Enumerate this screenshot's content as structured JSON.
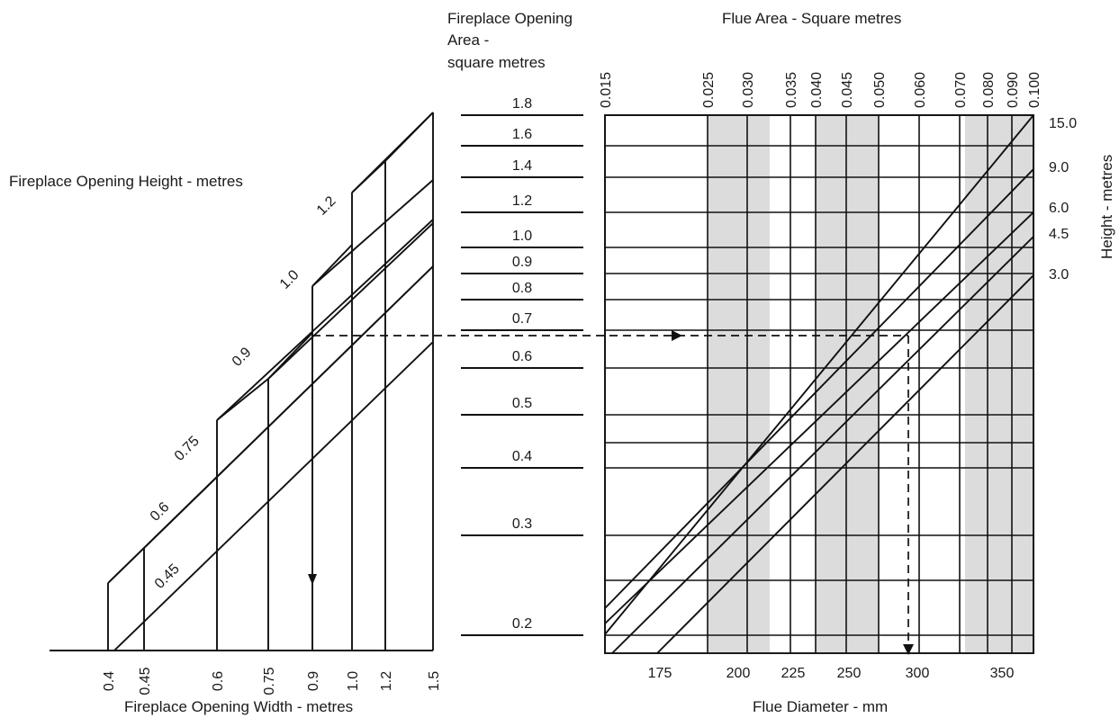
{
  "titles": {
    "height_label": "Fireplace Opening Height - metres",
    "width_label": "Fireplace Opening Width - metres",
    "area_label_1": "Fireplace Opening",
    "area_label_2": "Area -",
    "area_label_3": "square metres",
    "flue_area_label": "Flue Area - Square metres",
    "flue_diameter_label": "Flue Diameter - mm",
    "chimney_height_label": "Height - metres"
  },
  "opening_widths": [
    "0.4",
    "0.45",
    "0.6",
    "0.75",
    "0.9",
    "1.0",
    "1.2",
    "1.5"
  ],
  "opening_heights": [
    "0.45",
    "0.6",
    "0.75",
    "0.9",
    "1.0",
    "1.2"
  ],
  "opening_areas": [
    "1.8",
    "1.6",
    "1.4",
    "1.2",
    "1.0",
    "0.9",
    "0.8",
    "0.7",
    "0.6",
    "0.5",
    "0.4",
    "0.3",
    "0.2"
  ],
  "flue_areas": [
    "0.015",
    "0.025",
    "0.030",
    "0.035",
    "0.040",
    "0.045",
    "0.050",
    "0.060",
    "0.070",
    "0.080",
    "0.090",
    "0.100"
  ],
  "chimney_heights": [
    "15.0",
    "9.0",
    "6.0",
    "4.5",
    "3.0"
  ],
  "flue_diameters": [
    "175",
    "200",
    "225",
    "250",
    "300",
    "350"
  ],
  "example": {
    "width": "0.9",
    "height": "0.9",
    "result_diameter": "300"
  },
  "colors": {
    "line": "#111111",
    "shade": "#dcdcdc"
  }
}
